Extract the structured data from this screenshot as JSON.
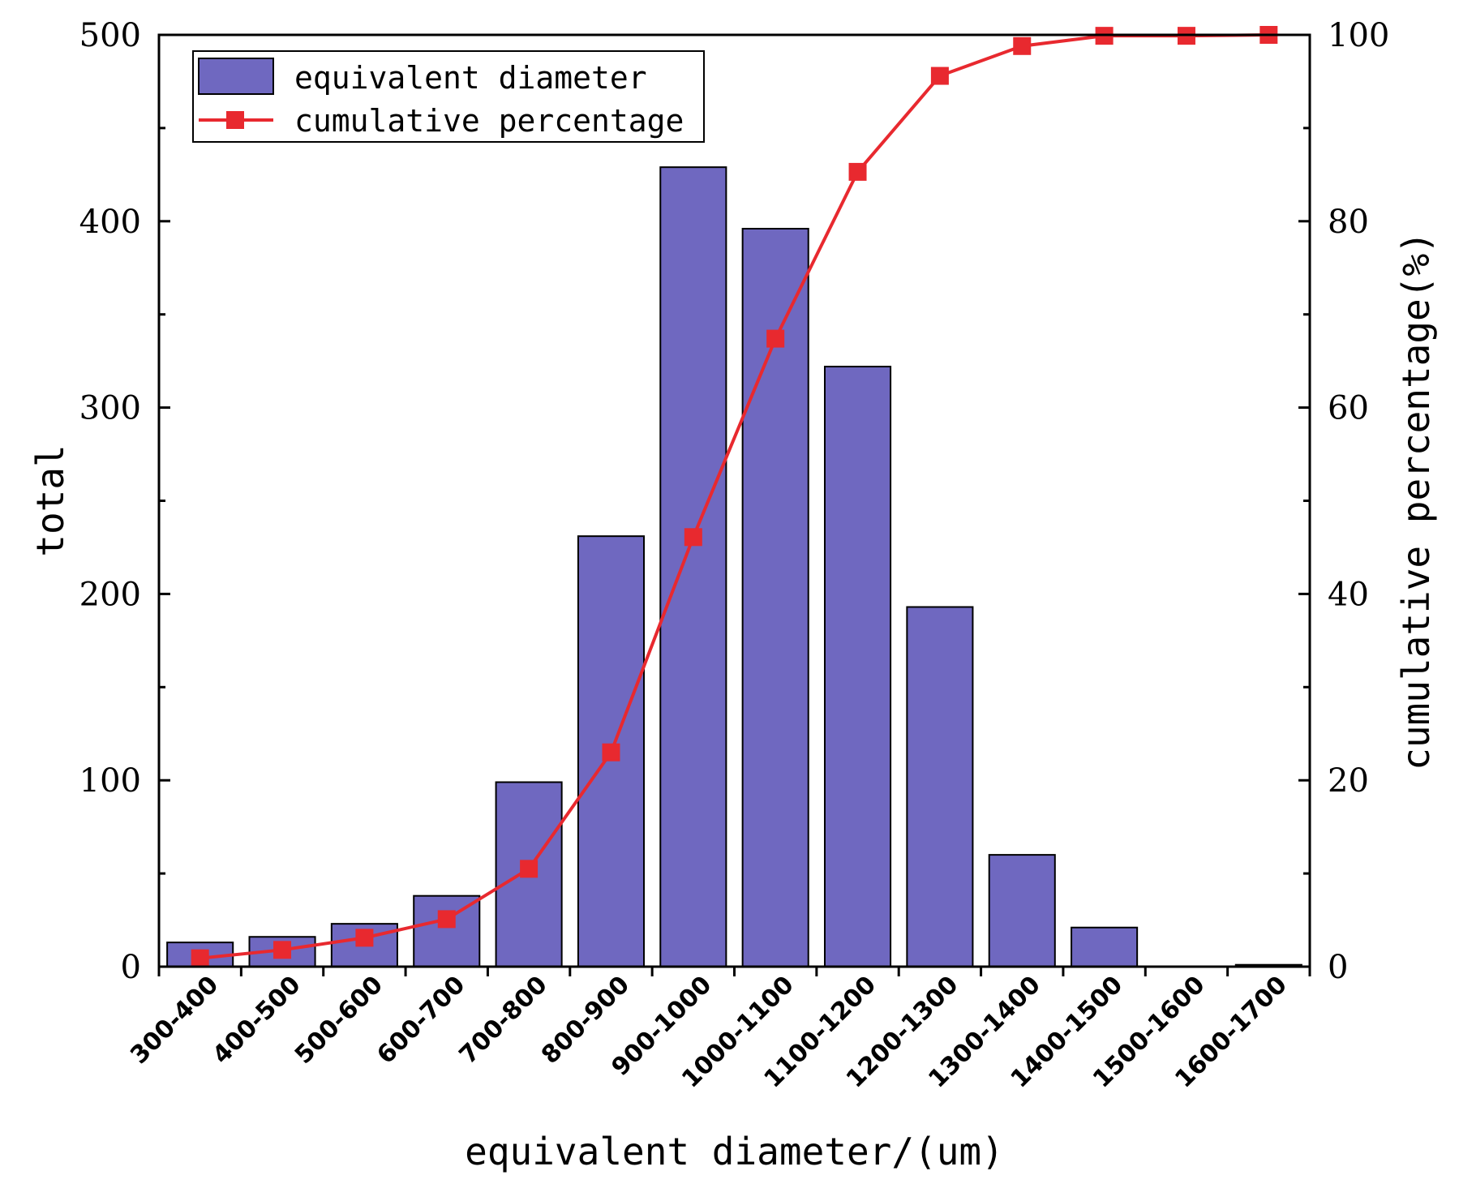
{
  "chart_data": {
    "type": "bar",
    "categories": [
      "300-400",
      "400-500",
      "500-600",
      "600-700",
      "700-800",
      "800-900",
      "900-1000",
      "1000-1100",
      "1100-1200",
      "1200-1300",
      "1300-1400",
      "1400-1500",
      "1500-1600",
      "1600-1700"
    ],
    "series": [
      {
        "name": "equivalent diameter",
        "type": "bar",
        "axis": "left",
        "color": "#6f68c0",
        "values": [
          13,
          16,
          23,
          38,
          99,
          231,
          429,
          396,
          322,
          193,
          60,
          21,
          0,
          1
        ]
      },
      {
        "name": "cumulative percentage",
        "type": "line",
        "axis": "right",
        "color": "#e8292f",
        "values": [
          0.9,
          1.8,
          3.1,
          5.1,
          10.5,
          23.0,
          46.1,
          67.4,
          85.3,
          95.6,
          98.8,
          99.9,
          99.9,
          100.0
        ]
      }
    ],
    "xlabel": "equivalent diameter/(um)",
    "ylabel": "total",
    "y2label": "cumulative percentage(%)",
    "ylim": [
      0,
      500
    ],
    "yticks": [
      0,
      100,
      200,
      300,
      400,
      500
    ],
    "y2lim": [
      0,
      100
    ],
    "y2ticks": [
      0,
      20,
      40,
      60,
      80,
      100
    ],
    "legend": "top-left",
    "grid": false
  }
}
